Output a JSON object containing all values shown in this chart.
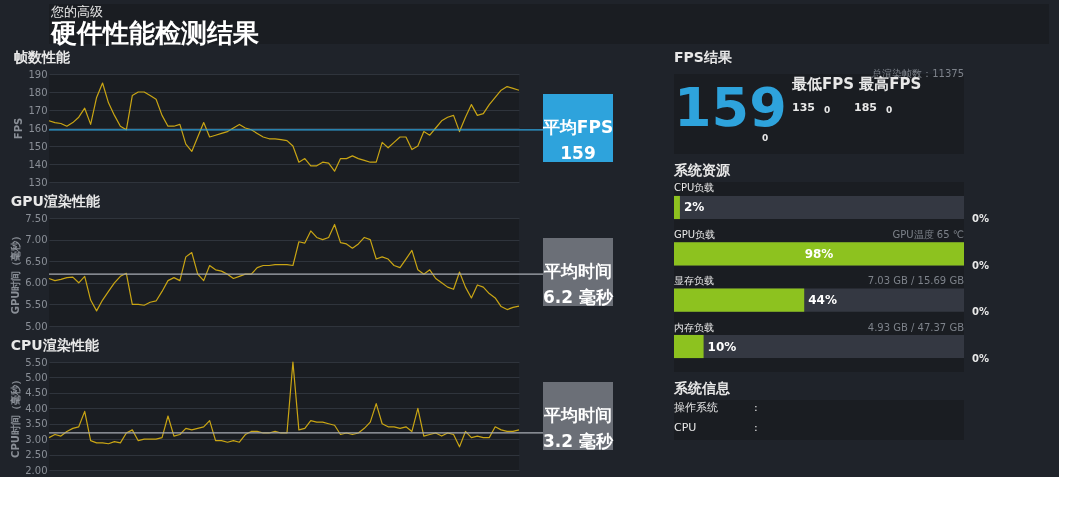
{
  "chart_data": [
    {
      "type": "other",
      "annotations": [
        "您的高级",
        "硬件性能检测结果"
      ]
    },
    {
      "type": "line",
      "title": "帧数性能",
      "ylabel": "FPS",
      "categories": [
        null,
        null,
        null,
        null,
        null,
        null,
        null,
        null,
        null,
        null,
        null,
        null,
        null,
        null,
        null,
        null,
        null,
        null,
        null,
        null,
        null,
        null,
        null,
        null,
        null,
        null,
        null,
        null,
        null,
        null,
        null,
        null,
        null,
        null,
        null,
        null,
        null,
        null,
        null,
        null,
        null,
        null,
        null,
        null,
        null,
        null,
        null,
        null,
        null,
        null,
        null,
        null,
        null,
        null,
        null,
        null,
        null,
        null,
        null,
        null,
        null,
        null,
        null,
        null,
        null,
        null,
        null,
        null,
        null,
        null,
        null,
        null,
        null,
        null,
        null,
        null,
        null,
        null,
        null,
        null
      ],
      "series": [
        {
          "color": "#c9a514",
          "values": [
            164,
            163,
            162.5,
            161,
            163,
            166,
            171,
            162,
            177,
            185,
            174,
            167,
            161,
            159,
            178,
            180,
            180,
            178,
            176,
            167,
            161,
            161,
            162,
            151,
            147,
            155,
            163,
            155,
            156,
            157,
            158,
            160,
            162,
            160,
            159,
            157,
            155,
            154,
            154,
            153.5,
            153,
            150,
            141,
            143,
            139,
            139,
            141,
            140.5,
            136,
            143,
            143,
            144.5,
            143,
            142,
            141,
            141,
            152,
            149,
            152,
            155,
            155,
            148,
            150,
            158,
            156,
            160,
            164,
            166,
            167,
            158,
            166,
            173,
            167,
            168,
            173,
            177,
            181,
            183,
            182,
            181
          ]
        }
      ],
      "ylim": [
        130,
        190
      ],
      "yticks": [
        130,
        140,
        150,
        160,
        170,
        180,
        190
      ],
      "grid": "y",
      "tick_labels": "y",
      "ref_lines": [
        {
          "axis": "y",
          "value": 159,
          "label": "平均FPS\n159",
          "color": "#2ea3dc"
        }
      ]
    },
    {
      "type": "line",
      "title": "GPU渲染性能",
      "ylabel": "GPU时间（毫秒）",
      "categories": [
        null,
        null,
        null,
        null,
        null,
        null,
        null,
        null,
        null,
        null,
        null,
        null,
        null,
        null,
        null,
        null,
        null,
        null,
        null,
        null,
        null,
        null,
        null,
        null,
        null,
        null,
        null,
        null,
        null,
        null,
        null,
        null,
        null,
        null,
        null,
        null,
        null,
        null,
        null,
        null,
        null,
        null,
        null,
        null,
        null,
        null,
        null,
        null,
        null,
        null,
        null,
        null,
        null,
        null,
        null,
        null,
        null,
        null,
        null,
        null,
        null,
        null,
        null,
        null,
        null,
        null,
        null,
        null,
        null,
        null,
        null,
        null,
        null,
        null,
        null,
        null,
        null,
        null,
        null,
        null
      ],
      "series": [
        {
          "color": "#c9a514",
          "values": [
            6.1,
            6.05,
            6.08,
            6.12,
            6.13,
            6.0,
            6.15,
            5.6,
            5.35,
            5.6,
            5.8,
            6.0,
            6.15,
            6.22,
            5.5,
            5.5,
            5.48,
            5.55,
            5.58,
            5.8,
            6.05,
            6.12,
            6.05,
            6.6,
            6.7,
            6.2,
            6.05,
            6.4,
            6.3,
            6.27,
            6.2,
            6.1,
            6.15,
            6.2,
            6.2,
            6.35,
            6.4,
            6.4,
            6.42,
            6.42,
            6.42,
            6.4,
            6.95,
            6.92,
            7.2,
            7.05,
            7.0,
            7.05,
            7.35,
            6.93,
            6.9,
            6.8,
            6.9,
            7.05,
            7.0,
            6.55,
            6.6,
            6.55,
            6.4,
            6.35,
            6.55,
            6.75,
            6.3,
            6.2,
            6.3,
            6.1,
            6.0,
            5.9,
            5.85,
            6.25,
            5.9,
            5.65,
            5.95,
            5.9,
            5.75,
            5.65,
            5.45,
            5.38,
            5.43,
            5.46
          ]
        }
      ],
      "ylim": [
        5,
        7.5
      ],
      "yticks": [
        {
          "value": 5,
          "label": "5.00"
        },
        {
          "value": 5.5,
          "label": "5.50"
        },
        {
          "value": 6,
          "label": "6.00"
        },
        {
          "value": 6.5,
          "label": "6.50"
        },
        {
          "value": 7,
          "label": "7.00"
        },
        {
          "value": 7.5,
          "label": "7.50"
        }
      ],
      "grid": "y",
      "tick_labels": "y",
      "ref_lines": [
        {
          "axis": "y",
          "value": 6.2,
          "label": "平均时间\n6.2 毫秒",
          "color": "#a9adb4"
        }
      ]
    },
    {
      "type": "line",
      "title": "CPU渲染性能",
      "ylabel": "CPU时间（毫秒）",
      "categories": [
        null,
        null,
        null,
        null,
        null,
        null,
        null,
        null,
        null,
        null,
        null,
        null,
        null,
        null,
        null,
        null,
        null,
        null,
        null,
        null,
        null,
        null,
        null,
        null,
        null,
        null,
        null,
        null,
        null,
        null,
        null,
        null,
        null,
        null,
        null,
        null,
        null,
        null,
        null,
        null,
        null,
        null,
        null,
        null,
        null,
        null,
        null,
        null,
        null,
        null,
        null,
        null,
        null,
        null,
        null,
        null,
        null,
        null,
        null,
        null,
        null,
        null,
        null,
        null,
        null,
        null,
        null,
        null,
        null,
        null,
        null,
        null,
        null,
        null,
        null,
        null,
        null,
        null,
        null,
        null
      ],
      "series": [
        {
          "color": "#c9a514",
          "values": [
            3.05,
            3.15,
            3.1,
            3.25,
            3.35,
            3.4,
            3.9,
            2.95,
            2.88,
            2.88,
            2.85,
            2.92,
            2.88,
            3.2,
            3.3,
            2.95,
            3.0,
            3.0,
            3.0,
            3.05,
            3.75,
            3.1,
            3.15,
            3.35,
            3.3,
            3.35,
            3.4,
            3.6,
            2.95,
            2.95,
            2.9,
            2.95,
            2.9,
            3.15,
            3.25,
            3.25,
            3.2,
            3.2,
            3.25,
            3.2,
            3.2,
            5.5,
            3.3,
            3.35,
            3.6,
            3.55,
            3.55,
            3.5,
            3.45,
            3.15,
            3.2,
            3.15,
            3.2,
            3.35,
            3.55,
            4.15,
            3.5,
            3.4,
            3.4,
            3.35,
            3.4,
            3.25,
            4.0,
            3.1,
            3.15,
            3.2,
            3.1,
            3.2,
            3.15,
            2.75,
            3.25,
            3.05,
            3.1,
            3.05,
            3.05,
            3.4,
            3.3,
            3.25,
            3.25,
            3.3
          ]
        }
      ],
      "ylim": [
        2,
        5.5
      ],
      "yticks": [
        {
          "value": 2,
          "label": "2.00"
        },
        {
          "value": 2.5,
          "label": "2.50"
        },
        {
          "value": 3,
          "label": "3.00"
        },
        {
          "value": 3.5,
          "label": "3.50"
        },
        {
          "value": 4,
          "label": "4.00"
        },
        {
          "value": 4.5,
          "label": "4.50"
        },
        {
          "value": 5,
          "label": "5.00"
        },
        {
          "value": 5.5,
          "label": "5.50"
        }
      ],
      "grid": "y",
      "tick_labels": "y",
      "ref_lines": [
        {
          "axis": "y",
          "value": 3.2,
          "label": "平均时间\n3.2 毫秒",
          "color": "#a9adb4"
        }
      ]
    },
    {
      "type": "other",
      "title": "FPS结果",
      "annotations": [
        "总渲染帧数：11375",
        "159",
        "0",
        "最低FPS 最高FPS",
        "135",
        "0",
        "185",
        "0"
      ]
    },
    {
      "type": "bar",
      "title": "系统资源",
      "orientation": "horizontal",
      "categories": [
        "CPU负载",
        "GPU负载",
        "显存负载",
        "内存负载"
      ],
      "values": [
        2,
        98,
        44,
        10
      ],
      "value_labels": [
        "2%",
        "98%",
        "44%",
        "10%"
      ],
      "color": "#8dc21f",
      "tick_labels": "y",
      "annotations": [
        "GPU温度 65 ℃",
        "7.03 GB / 15.69 GB",
        "4.93 GB / 47.37 GB",
        "0%",
        "0%",
        "0%",
        "0%"
      ]
    },
    {
      "type": "other",
      "title": "系统信息",
      "annotations": [
        "操作系统",
        ":",
        "CPU",
        ":"
      ]
    }
  ]
}
